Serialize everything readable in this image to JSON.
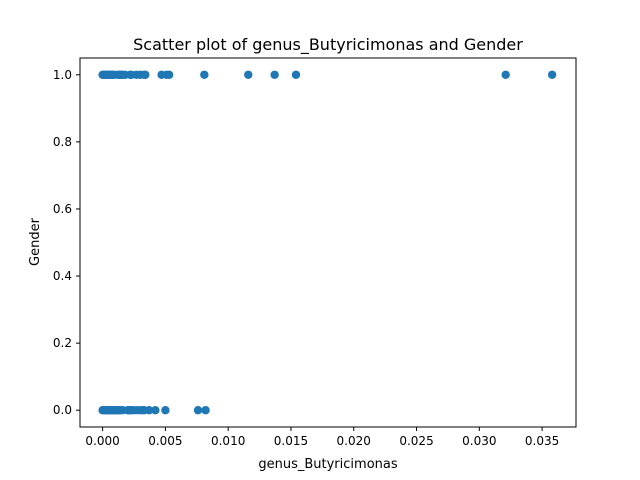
{
  "chart_data": {
    "type": "scatter",
    "title": "Scatter plot of genus_Butyricimonas and Gender",
    "xlabel": "genus_Butyricimonas",
    "ylabel": "Gender",
    "xlim": [
      -0.0018,
      0.0377
    ],
    "ylim": [
      -0.05,
      1.05
    ],
    "xticks": [
      0.0,
      0.005,
      0.01,
      0.015,
      0.02,
      0.025,
      0.03,
      0.035
    ],
    "xtick_labels": [
      "0.000",
      "0.005",
      "0.010",
      "0.015",
      "0.020",
      "0.025",
      "0.030",
      "0.035"
    ],
    "yticks": [
      0.0,
      0.2,
      0.4,
      0.6,
      0.8,
      1.0
    ],
    "ytick_labels": [
      "0.0",
      "0.2",
      "0.4",
      "0.6",
      "0.8",
      "1.0"
    ],
    "grid": false,
    "marker_color": "#1f77b4",
    "points": [
      {
        "x": 0.0,
        "y": 1
      },
      {
        "x": 0.0001,
        "y": 1
      },
      {
        "x": 0.0002,
        "y": 1
      },
      {
        "x": 0.0003,
        "y": 1
      },
      {
        "x": 0.0004,
        "y": 1
      },
      {
        "x": 0.0005,
        "y": 1
      },
      {
        "x": 0.0006,
        "y": 1
      },
      {
        "x": 0.0007,
        "y": 1
      },
      {
        "x": 0.0008,
        "y": 1
      },
      {
        "x": 0.0009,
        "y": 1
      },
      {
        "x": 0.0012,
        "y": 1
      },
      {
        "x": 0.0013,
        "y": 1
      },
      {
        "x": 0.0014,
        "y": 1
      },
      {
        "x": 0.0015,
        "y": 1
      },
      {
        "x": 0.0016,
        "y": 1
      },
      {
        "x": 0.0018,
        "y": 1
      },
      {
        "x": 0.0022,
        "y": 1
      },
      {
        "x": 0.0023,
        "y": 1
      },
      {
        "x": 0.0027,
        "y": 1
      },
      {
        "x": 0.003,
        "y": 1
      },
      {
        "x": 0.0033,
        "y": 1
      },
      {
        "x": 0.0034,
        "y": 1
      },
      {
        "x": 0.0047,
        "y": 1
      },
      {
        "x": 0.0051,
        "y": 1
      },
      {
        "x": 0.0053,
        "y": 1
      },
      {
        "x": 0.0081,
        "y": 1
      },
      {
        "x": 0.0116,
        "y": 1
      },
      {
        "x": 0.0137,
        "y": 1
      },
      {
        "x": 0.0154,
        "y": 1
      },
      {
        "x": 0.0321,
        "y": 1
      },
      {
        "x": 0.0358,
        "y": 1
      },
      {
        "x": 0.0,
        "y": 0
      },
      {
        "x": 0.0001,
        "y": 0
      },
      {
        "x": 0.0002,
        "y": 0
      },
      {
        "x": 0.0003,
        "y": 0
      },
      {
        "x": 0.0004,
        "y": 0
      },
      {
        "x": 0.0005,
        "y": 0
      },
      {
        "x": 0.0006,
        "y": 0
      },
      {
        "x": 0.0007,
        "y": 0
      },
      {
        "x": 0.0008,
        "y": 0
      },
      {
        "x": 0.0009,
        "y": 0
      },
      {
        "x": 0.001,
        "y": 0
      },
      {
        "x": 0.0011,
        "y": 0
      },
      {
        "x": 0.0012,
        "y": 0
      },
      {
        "x": 0.0013,
        "y": 0
      },
      {
        "x": 0.0014,
        "y": 0
      },
      {
        "x": 0.0016,
        "y": 0
      },
      {
        "x": 0.002,
        "y": 0
      },
      {
        "x": 0.0021,
        "y": 0
      },
      {
        "x": 0.0022,
        "y": 0
      },
      {
        "x": 0.0023,
        "y": 0
      },
      {
        "x": 0.0025,
        "y": 0
      },
      {
        "x": 0.0028,
        "y": 0
      },
      {
        "x": 0.0031,
        "y": 0
      },
      {
        "x": 0.0033,
        "y": 0
      },
      {
        "x": 0.0037,
        "y": 0
      },
      {
        "x": 0.0042,
        "y": 0
      },
      {
        "x": 0.005,
        "y": 0
      },
      {
        "x": 0.0076,
        "y": 0
      },
      {
        "x": 0.0082,
        "y": 0
      }
    ]
  }
}
